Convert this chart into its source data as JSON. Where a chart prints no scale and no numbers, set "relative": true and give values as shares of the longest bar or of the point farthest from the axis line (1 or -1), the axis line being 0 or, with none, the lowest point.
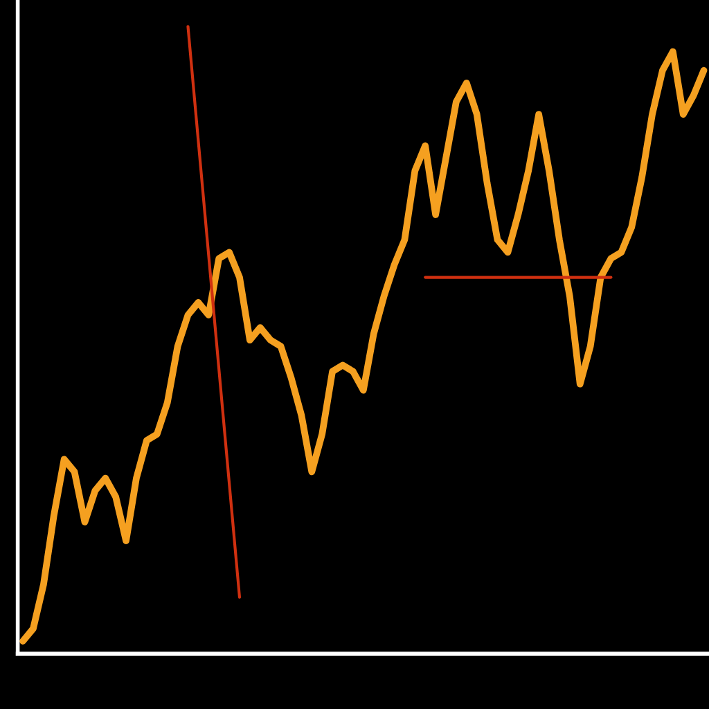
{
  "chart_data": {
    "type": "line",
    "relative": true,
    "grid": false,
    "legend": false,
    "marker": "none",
    "line_style": "solid",
    "categories": [
      null,
      null,
      null,
      null,
      null,
      null,
      null,
      null,
      null,
      null,
      null,
      null,
      null,
      null,
      null,
      null,
      null,
      null,
      null,
      null,
      null,
      null,
      null,
      null,
      null,
      null,
      null,
      null,
      null,
      null,
      null,
      null,
      null,
      null,
      null,
      null,
      null,
      null,
      null,
      null,
      null,
      null,
      null,
      null,
      null,
      null,
      null,
      null,
      null,
      null,
      null,
      null,
      null,
      null,
      null,
      null,
      null,
      null,
      null,
      null,
      null,
      null,
      null,
      null,
      null,
      null,
      null
    ],
    "series": [
      {
        "color": "#f5a020",
        "values": [
          0.02,
          0.04,
          0.11,
          0.22,
          0.31,
          0.29,
          0.21,
          0.26,
          0.28,
          0.25,
          0.18,
          0.28,
          0.34,
          0.35,
          0.4,
          0.49,
          0.54,
          0.56,
          0.54,
          0.63,
          0.64,
          0.6,
          0.5,
          0.52,
          0.5,
          0.49,
          0.44,
          0.38,
          0.29,
          0.35,
          0.45,
          0.46,
          0.45,
          0.42,
          0.51,
          0.57,
          0.62,
          0.66,
          0.77,
          0.81,
          0.7,
          0.79,
          0.88,
          0.91,
          0.86,
          0.75,
          0.66,
          0.64,
          0.7,
          0.77,
          0.86,
          0.77,
          0.66,
          0.57,
          0.43,
          0.49,
          0.6,
          0.63,
          0.64,
          0.68,
          0.76,
          0.86,
          0.93,
          0.96,
          0.86,
          0.89,
          0.93
        ]
      },
      {
        "color": "#d03010",
        "values": [
          null,
          null,
          null,
          null,
          null,
          null,
          null,
          null,
          null,
          null,
          null,
          null,
          null,
          null,
          null,
          null,
          1,
          null,
          null,
          null,
          null,
          0.09,
          null,
          null,
          null,
          null,
          null,
          null,
          null,
          null,
          null,
          null,
          null,
          null,
          null,
          null,
          null,
          null,
          null,
          null,
          null,
          null,
          null,
          null,
          null,
          null,
          null,
          null,
          null,
          null,
          null,
          null,
          null,
          null,
          null,
          null,
          null,
          null,
          null,
          null,
          null,
          null,
          null,
          null,
          null,
          null,
          null
        ]
      },
      {
        "color": "#d03010",
        "values": [
          null,
          null,
          null,
          null,
          null,
          null,
          null,
          null,
          null,
          null,
          null,
          null,
          null,
          null,
          null,
          null,
          null,
          null,
          null,
          null,
          null,
          null,
          null,
          null,
          null,
          null,
          null,
          null,
          null,
          null,
          null,
          null,
          null,
          null,
          null,
          null,
          null,
          null,
          null,
          0.6,
          null,
          null,
          null,
          null,
          null,
          null,
          null,
          null,
          null,
          null,
          null,
          null,
          null,
          null,
          null,
          null,
          null,
          0.6,
          null,
          null,
          null,
          null,
          null,
          null,
          null,
          null,
          null
        ]
      }
    ]
  }
}
